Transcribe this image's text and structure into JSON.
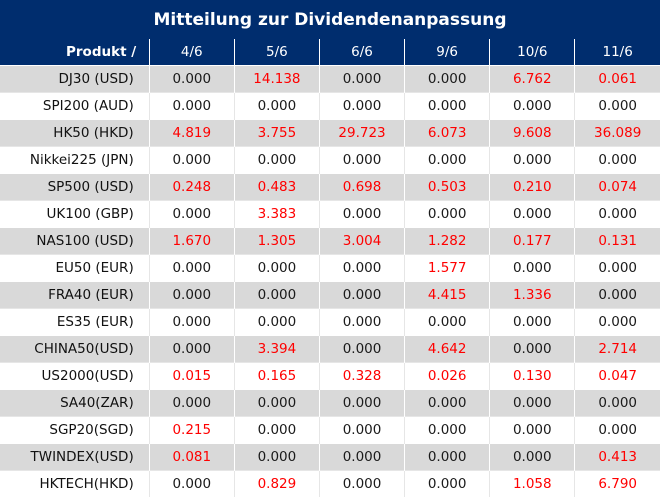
{
  "title": "Mitteilung zur Dividendenanpassung",
  "header": {
    "product_label": "Produkt /",
    "dates": [
      "4/6",
      "5/6",
      "6/6",
      "9/6",
      "10/6",
      "11/6"
    ]
  },
  "rows": [
    {
      "name": "DJ30 (USD)",
      "values": [
        "0.000",
        "14.138",
        "0.000",
        "0.000",
        "6.762",
        "0.061"
      ]
    },
    {
      "name": "SPI200 (AUD)",
      "values": [
        "0.000",
        "0.000",
        "0.000",
        "0.000",
        "0.000",
        "0.000"
      ]
    },
    {
      "name": "HK50 (HKD)",
      "values": [
        "4.819",
        "3.755",
        "29.723",
        "6.073",
        "9.608",
        "36.089"
      ]
    },
    {
      "name": "Nikkei225 (JPN)",
      "values": [
        "0.000",
        "0.000",
        "0.000",
        "0.000",
        "0.000",
        "0.000"
      ]
    },
    {
      "name": "SP500 (USD)",
      "values": [
        "0.248",
        "0.483",
        "0.698",
        "0.503",
        "0.210",
        "0.074"
      ]
    },
    {
      "name": "UK100 (GBP)",
      "values": [
        "0.000",
        "3.383",
        "0.000",
        "0.000",
        "0.000",
        "0.000"
      ]
    },
    {
      "name": "NAS100 (USD)",
      "values": [
        "1.670",
        "1.305",
        "3.004",
        "1.282",
        "0.177",
        "0.131"
      ]
    },
    {
      "name": "EU50 (EUR)",
      "values": [
        "0.000",
        "0.000",
        "0.000",
        "1.577",
        "0.000",
        "0.000"
      ]
    },
    {
      "name": "FRA40 (EUR)",
      "values": [
        "0.000",
        "0.000",
        "0.000",
        "4.415",
        "1.336",
        "0.000"
      ]
    },
    {
      "name": "ES35 (EUR)",
      "values": [
        "0.000",
        "0.000",
        "0.000",
        "0.000",
        "0.000",
        "0.000"
      ]
    },
    {
      "name": "CHINA50(USD)",
      "values": [
        "0.000",
        "3.394",
        "0.000",
        "4.642",
        "0.000",
        "2.714"
      ]
    },
    {
      "name": "US2000(USD)",
      "values": [
        "0.015",
        "0.165",
        "0.328",
        "0.026",
        "0.130",
        "0.047"
      ]
    },
    {
      "name": "SA40(ZAR)",
      "values": [
        "0.000",
        "0.000",
        "0.000",
        "0.000",
        "0.000",
        "0.000"
      ]
    },
    {
      "name": "SGP20(SGD)",
      "values": [
        "0.215",
        "0.000",
        "0.000",
        "0.000",
        "0.000",
        "0.000"
      ]
    },
    {
      "name": "TWINDEX(USD)",
      "values": [
        "0.081",
        "0.000",
        "0.000",
        "0.000",
        "0.000",
        "0.413"
      ]
    },
    {
      "name": "HKTECH(HKD)",
      "values": [
        "0.000",
        "0.829",
        "0.000",
        "0.000",
        "1.058",
        "6.790"
      ]
    }
  ],
  "colors": {
    "header_bg": "#002d6e",
    "shade_row": "#d9d9d9",
    "positive_value": "#ff0000",
    "zero_value": "#1a1a1a"
  }
}
